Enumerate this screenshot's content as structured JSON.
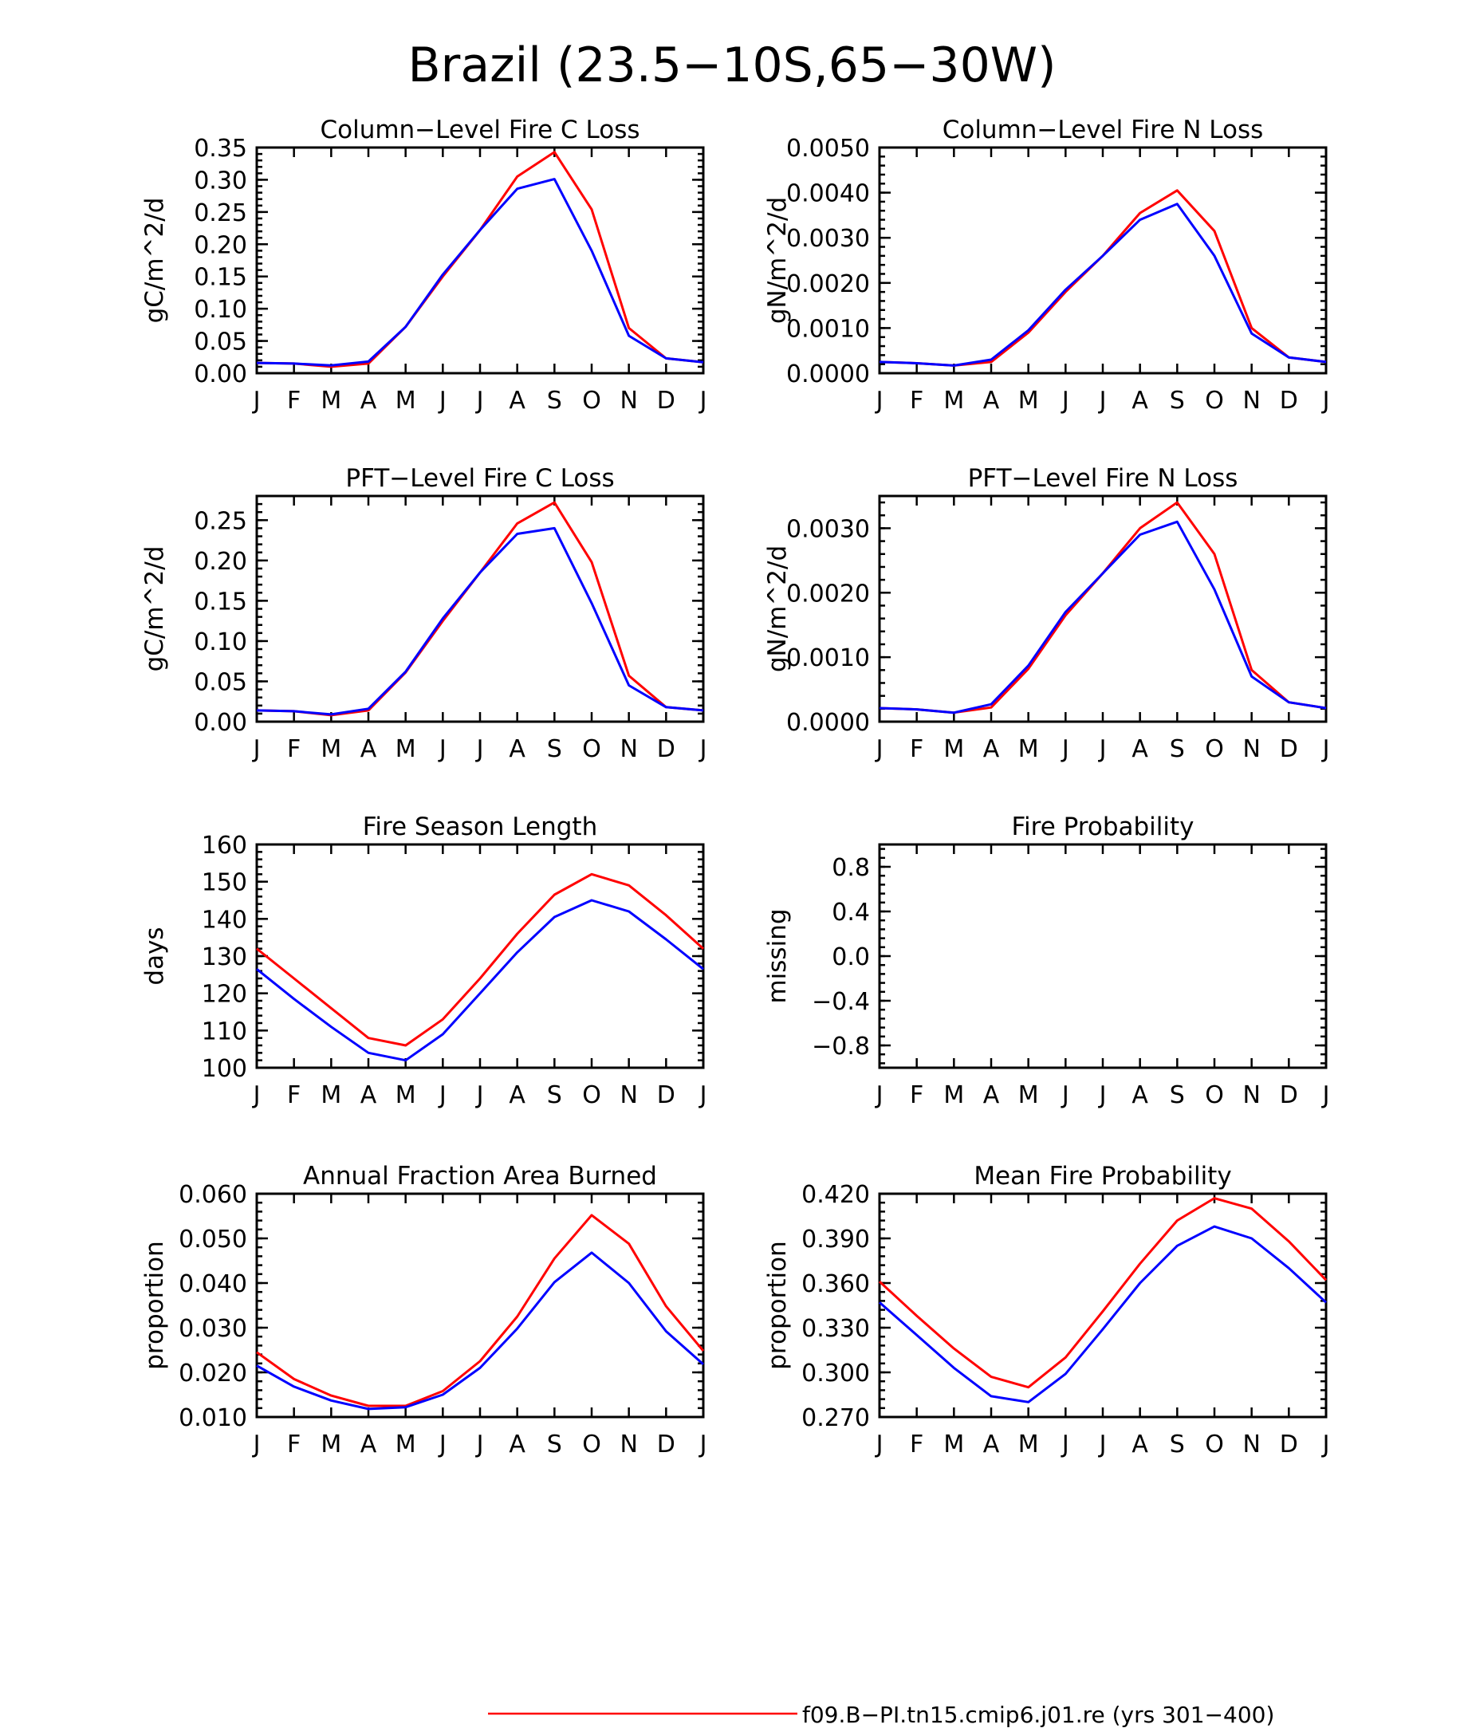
{
  "figure": {
    "title": "Brazil (23.5−10S,65−30W)",
    "colors": {
      "red": "#ff0000",
      "blue": "#0000ff"
    },
    "legend": [
      {
        "label": "f09.B−PI.tn15.cmip6.j01.re (yrs 301−400)",
        "color": "#ff0000"
      }
    ]
  },
  "chart_data": [
    {
      "type": "line",
      "title": "Column−Level Fire C Loss",
      "ylabel": "gC/m^2/d",
      "categories": [
        "J",
        "F",
        "M",
        "A",
        "M",
        "J",
        "J",
        "A",
        "S",
        "O",
        "N",
        "D",
        "J"
      ],
      "ylim": [
        0,
        0.35
      ],
      "yticks": [
        "0.00",
        "0.05",
        "0.10",
        "0.15",
        "0.20",
        "0.25",
        "0.30",
        "0.35"
      ],
      "series": [
        {
          "color": "#ff0000",
          "values": [
            0.016,
            0.015,
            0.01,
            0.015,
            0.072,
            0.15,
            0.222,
            0.305,
            0.343,
            0.254,
            0.07,
            0.023,
            0.017
          ]
        },
        {
          "color": "#0000ff",
          "values": [
            0.016,
            0.015,
            0.012,
            0.018,
            0.072,
            0.153,
            0.222,
            0.286,
            0.301,
            0.19,
            0.058,
            0.023,
            0.017
          ]
        }
      ]
    },
    {
      "type": "line",
      "title": "Column−Level Fire N Loss",
      "ylabel": "gN/m^2/d",
      "categories": [
        "J",
        "F",
        "M",
        "A",
        "M",
        "J",
        "J",
        "A",
        "S",
        "O",
        "N",
        "D",
        "J"
      ],
      "ylim": [
        0,
        0.005
      ],
      "yticks": [
        "0.0000",
        "0.0010",
        "0.0020",
        "0.0030",
        "0.0040",
        "0.0050"
      ],
      "series": [
        {
          "color": "#ff0000",
          "values": [
            0.00025,
            0.00022,
            0.00017,
            0.00025,
            0.0009,
            0.0018,
            0.0026,
            0.00355,
            0.00405,
            0.00315,
            0.001,
            0.00035,
            0.00025
          ]
        },
        {
          "color": "#0000ff",
          "values": [
            0.00025,
            0.00022,
            0.00017,
            0.0003,
            0.00095,
            0.00185,
            0.0026,
            0.0034,
            0.00375,
            0.0026,
            0.00088,
            0.00035,
            0.00025
          ]
        }
      ]
    },
    {
      "type": "line",
      "title": "PFT−Level Fire C Loss",
      "ylabel": "gC/m^2/d",
      "categories": [
        "J",
        "F",
        "M",
        "A",
        "M",
        "J",
        "J",
        "A",
        "S",
        "O",
        "N",
        "D",
        "J"
      ],
      "ylim": [
        0,
        0.28
      ],
      "yticks": [
        "0.00",
        "0.05",
        "0.10",
        "0.15",
        "0.20",
        "0.25"
      ],
      "series": [
        {
          "color": "#ff0000",
          "values": [
            0.014,
            0.013,
            0.008,
            0.014,
            0.061,
            0.125,
            0.185,
            0.246,
            0.272,
            0.198,
            0.057,
            0.018,
            0.014
          ]
        },
        {
          "color": "#0000ff",
          "values": [
            0.014,
            0.013,
            0.009,
            0.016,
            0.062,
            0.128,
            0.185,
            0.233,
            0.24,
            0.147,
            0.045,
            0.018,
            0.014
          ]
        }
      ]
    },
    {
      "type": "line",
      "title": "PFT−Level Fire N Loss",
      "ylabel": "gN/m^2/d",
      "categories": [
        "J",
        "F",
        "M",
        "A",
        "M",
        "J",
        "J",
        "A",
        "S",
        "O",
        "N",
        "D",
        "J"
      ],
      "ylim": [
        0,
        0.0035
      ],
      "yticks": [
        "0.0000",
        "0.0010",
        "0.0020",
        "0.0030"
      ],
      "series": [
        {
          "color": "#ff0000",
          "values": [
            0.00021,
            0.00019,
            0.00014,
            0.00022,
            0.00082,
            0.00165,
            0.0023,
            0.003,
            0.0034,
            0.0026,
            0.0008,
            0.0003,
            0.00021
          ]
        },
        {
          "color": "#0000ff",
          "values": [
            0.00021,
            0.00019,
            0.00014,
            0.00027,
            0.00087,
            0.0017,
            0.0023,
            0.0029,
            0.0031,
            0.00205,
            0.0007,
            0.0003,
            0.00021
          ]
        }
      ]
    },
    {
      "type": "line",
      "title": "Fire Season Length",
      "ylabel": "days",
      "categories": [
        "J",
        "F",
        "M",
        "A",
        "M",
        "J",
        "J",
        "A",
        "S",
        "O",
        "N",
        "D",
        "J"
      ],
      "ylim": [
        100,
        160
      ],
      "yticks": [
        "100",
        "110",
        "120",
        "130",
        "140",
        "150",
        "160"
      ],
      "series": [
        {
          "color": "#ff0000",
          "values": [
            132,
            124,
            116,
            108,
            106,
            113,
            124,
            136,
            146.5,
            152,
            149,
            141,
            132
          ]
        },
        {
          "color": "#0000ff",
          "values": [
            126.5,
            118.5,
            111,
            104,
            102,
            109,
            120,
            131,
            140.5,
            145,
            142,
            134.5,
            126.5
          ]
        }
      ]
    },
    {
      "type": "line",
      "title": "Fire Probability",
      "ylabel": "missing",
      "categories": [
        "J",
        "F",
        "M",
        "A",
        "M",
        "J",
        "J",
        "A",
        "S",
        "O",
        "N",
        "D",
        "J"
      ],
      "ylim": [
        -1,
        1
      ],
      "yticks": [
        "−0.8",
        "−0.4",
        "0.0",
        "0.4",
        "0.8"
      ],
      "series": []
    },
    {
      "type": "line",
      "title": "Annual Fraction Area Burned",
      "ylabel": "proportion",
      "categories": [
        "J",
        "F",
        "M",
        "A",
        "M",
        "J",
        "J",
        "A",
        "S",
        "O",
        "N",
        "D",
        "J"
      ],
      "ylim": [
        0.01,
        0.06
      ],
      "yticks": [
        "0.010",
        "0.020",
        "0.030",
        "0.040",
        "0.050",
        "0.060"
      ],
      "series": [
        {
          "color": "#ff0000",
          "values": [
            0.0245,
            0.0185,
            0.0148,
            0.0125,
            0.0125,
            0.0158,
            0.0225,
            0.0325,
            0.0455,
            0.0552,
            0.0488,
            0.0348,
            0.0248
          ]
        },
        {
          "color": "#0000ff",
          "values": [
            0.0215,
            0.0168,
            0.0137,
            0.0118,
            0.0122,
            0.015,
            0.021,
            0.0298,
            0.0402,
            0.0468,
            0.04,
            0.0292,
            0.0218
          ]
        }
      ]
    },
    {
      "type": "line",
      "title": "Mean Fire Probability",
      "ylabel": "proportion",
      "categories": [
        "J",
        "F",
        "M",
        "A",
        "M",
        "J",
        "J",
        "A",
        "S",
        "O",
        "N",
        "D",
        "J"
      ],
      "ylim": [
        0.27,
        0.42
      ],
      "yticks": [
        "0.270",
        "0.300",
        "0.330",
        "0.360",
        "0.390",
        "0.420"
      ],
      "series": [
        {
          "color": "#ff0000",
          "values": [
            0.361,
            0.338,
            0.316,
            0.297,
            0.29,
            0.31,
            0.341,
            0.373,
            0.402,
            0.417,
            0.41,
            0.388,
            0.362
          ]
        },
        {
          "color": "#0000ff",
          "values": [
            0.347,
            0.325,
            0.303,
            0.284,
            0.28,
            0.299,
            0.329,
            0.36,
            0.385,
            0.398,
            0.39,
            0.37,
            0.347
          ]
        }
      ]
    }
  ]
}
